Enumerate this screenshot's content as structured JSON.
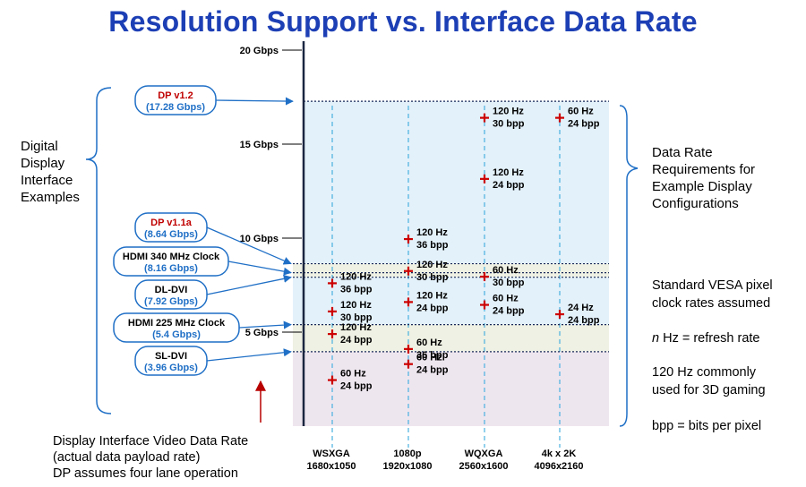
{
  "title": "Resolution Support vs. Interface Data Rate",
  "axis": {
    "ticks": [
      {
        "label": "20 Gbps",
        "value": 20
      },
      {
        "label": "15 Gbps",
        "value": 15
      },
      {
        "label": "10 Gbps",
        "value": 10
      },
      {
        "label": "5 Gbps",
        "value": 5
      }
    ],
    "range": [
      0,
      20
    ]
  },
  "left_label": [
    "Digital",
    "Display",
    "Interface",
    "Examples"
  ],
  "right_label": [
    "Data Rate",
    "Requirements for",
    "Example Display",
    "Configurations"
  ],
  "interfaces": [
    {
      "name": "DP v1.2",
      "rate": "(17.28 Gbps)",
      "gbps": 17.28,
      "name_color": "#c00000"
    },
    {
      "name": "DP v1.1a",
      "rate": "(8.64 Gbps)",
      "gbps": 8.64,
      "name_color": "#c00000"
    },
    {
      "name": "HDMI 340 MHz Clock",
      "rate": "(8.16 Gbps)",
      "gbps": 8.16,
      "name_color": "#000000"
    },
    {
      "name": "DL-DVI",
      "rate": "(7.92 Gbps)",
      "gbps": 7.92,
      "name_color": "#000000"
    },
    {
      "name": "HDMI 225 MHz Clock",
      "rate": "(5.4 Gbps)",
      "gbps": 5.4,
      "name_color": "#000000"
    },
    {
      "name": "SL-DVI",
      "rate": "(3.96 Gbps)",
      "gbps": 3.96,
      "name_color": "#000000"
    }
  ],
  "resolutions": [
    {
      "name": "WSXGA",
      "pixels": "1680x1050"
    },
    {
      "name": "1080p",
      "pixels": "1920x1080"
    },
    {
      "name": "WQXGA",
      "pixels": "2560x1600"
    },
    {
      "name": "4k x 2K",
      "pixels": "4096x2160"
    }
  ],
  "points": [
    {
      "res": 0,
      "gbps": 7.6,
      "line1": "120 Hz",
      "line2": "36 bpp"
    },
    {
      "res": 0,
      "gbps": 6.1,
      "line1": "120 Hz",
      "line2": "30 bpp"
    },
    {
      "res": 0,
      "gbps": 4.9,
      "line1": "120 Hz",
      "line2": "24 bpp"
    },
    {
      "res": 0,
      "gbps": 2.45,
      "line1": "60 Hz",
      "line2": "24 bpp"
    },
    {
      "res": 1,
      "gbps": 9.95,
      "line1": "120 Hz",
      "line2": "36 bpp"
    },
    {
      "res": 1,
      "gbps": 8.25,
      "line1": "120 Hz",
      "line2": "30 bpp"
    },
    {
      "res": 1,
      "gbps": 6.6,
      "line1": "120 Hz",
      "line2": "24 bpp"
    },
    {
      "res": 1,
      "gbps": 4.1,
      "line1": "60 Hz",
      "line2": "36 bpp"
    },
    {
      "res": 1,
      "gbps": 3.3,
      "line1": "60 Hz",
      "line2": "24 bpp"
    },
    {
      "res": 2,
      "gbps": 16.4,
      "line1": "120 Hz",
      "line2": "30 bpp"
    },
    {
      "res": 2,
      "gbps": 13.15,
      "line1": "120 Hz",
      "line2": "24 bpp"
    },
    {
      "res": 2,
      "gbps": 7.95,
      "line1": "60 Hz",
      "line2": "30 bpp"
    },
    {
      "res": 2,
      "gbps": 6.45,
      "line1": "60 Hz",
      "line2": "24 bpp"
    },
    {
      "res": 3,
      "gbps": 16.4,
      "line1": "60 Hz",
      "line2": "24 bpp"
    },
    {
      "res": 3,
      "gbps": 5.95,
      "line1": "24 Hz",
      "line2": "24 bpp"
    }
  ],
  "notes": [
    [
      "Standard VESA pixel",
      "clock rates assumed"
    ],
    [
      "n Hz = refresh rate"
    ],
    [
      "120 Hz commonly",
      "used for 3D gaming"
    ],
    [
      "bpp = bits per pixel"
    ]
  ],
  "bottom_note": [
    "Display Interface Video Data Rate",
    "(actual data payload rate)",
    "DP assumes four lane operation"
  ],
  "colors": {
    "title": "#1d3fb5",
    "band_blue": "#e3f1fa",
    "band_cream": "#eef1e3",
    "band_lilac": "#eee6ef",
    "interface_border": "#1f6fc6",
    "marker": "#cc0000",
    "guide": "#4ab0e0"
  }
}
